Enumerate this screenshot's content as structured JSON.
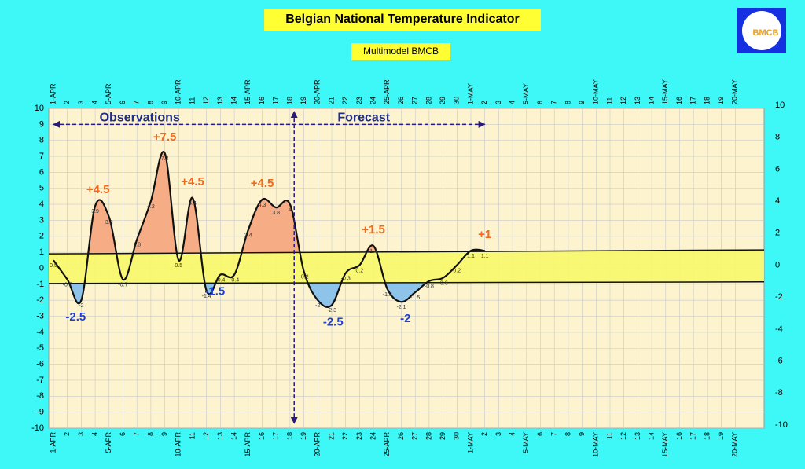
{
  "chart_data": {
    "type": "line",
    "title": "Belgian National Temperature Indicator",
    "subtitle": "Multimodel BMCB",
    "logo_text": "BMCB",
    "categories": [
      "1-APR",
      "2",
      "3",
      "4",
      "5-APR",
      "6",
      "7",
      "8",
      "9",
      "10-APR",
      "11",
      "12",
      "13",
      "14",
      "15-APR",
      "16",
      "17",
      "18",
      "19",
      "20-APR",
      "21",
      "22",
      "23",
      "24",
      "25-APR",
      "26",
      "27",
      "28",
      "29",
      "30",
      "1-MAY",
      "2",
      "3",
      "4",
      "5-MAY",
      "6",
      "7",
      "8",
      "9",
      "10-MAY",
      "11",
      "12",
      "13",
      "14",
      "15-MAY",
      "16",
      "17",
      "18",
      "19",
      "20-MAY"
    ],
    "series": [
      {
        "color": "#111111",
        "values": [
          0.5,
          -0.7,
          -2,
          3.9,
          3.2,
          -0.7,
          1.8,
          4.2,
          7.2,
          0.5,
          4.4,
          -1.4,
          -0.4,
          -0.4,
          2.4,
          4.3,
          3.8,
          4,
          -0.2,
          -2,
          -2.3,
          -0.3,
          0.2,
          1.4,
          -1.3,
          -2.1,
          -1.5,
          -0.8,
          -0.6,
          0.2,
          1.1,
          1.1,
          null,
          null,
          null,
          null,
          null,
          null,
          null,
          null,
          null,
          null,
          null,
          null,
          null,
          null,
          null,
          null,
          null,
          null
        ]
      }
    ],
    "band": {
      "upper": [
        0.9,
        1.15
      ],
      "lower": [
        -0.95,
        -0.85
      ],
      "color": "#f8f86a"
    },
    "above_color": "#f6ad85",
    "below_color": "#8ec3ea",
    "annotations": {
      "above": [
        "+4.5",
        "+7.5",
        "+4.5",
        "+4.5",
        "+1.5",
        "+1"
      ],
      "below": [
        "-2.5",
        "-1.5",
        "-2.5",
        "-2"
      ],
      "above_color": "#f0691e",
      "below_color": "#1e3ed8"
    },
    "periods": [
      "Observations",
      "Forecast"
    ],
    "ylim": [
      -10,
      10
    ],
    "yticks": [
      -10,
      -9,
      -8,
      -7,
      -6,
      -5,
      -4,
      -3,
      -2,
      -1,
      0,
      1,
      2,
      3,
      4,
      5,
      6,
      7,
      8,
      9,
      10
    ],
    "y2lim": [
      -10,
      10
    ],
    "y2ticks": [
      -10,
      -8,
      -6,
      -4,
      -2,
      0,
      2,
      4,
      6,
      8,
      10
    ],
    "grid": true
  }
}
